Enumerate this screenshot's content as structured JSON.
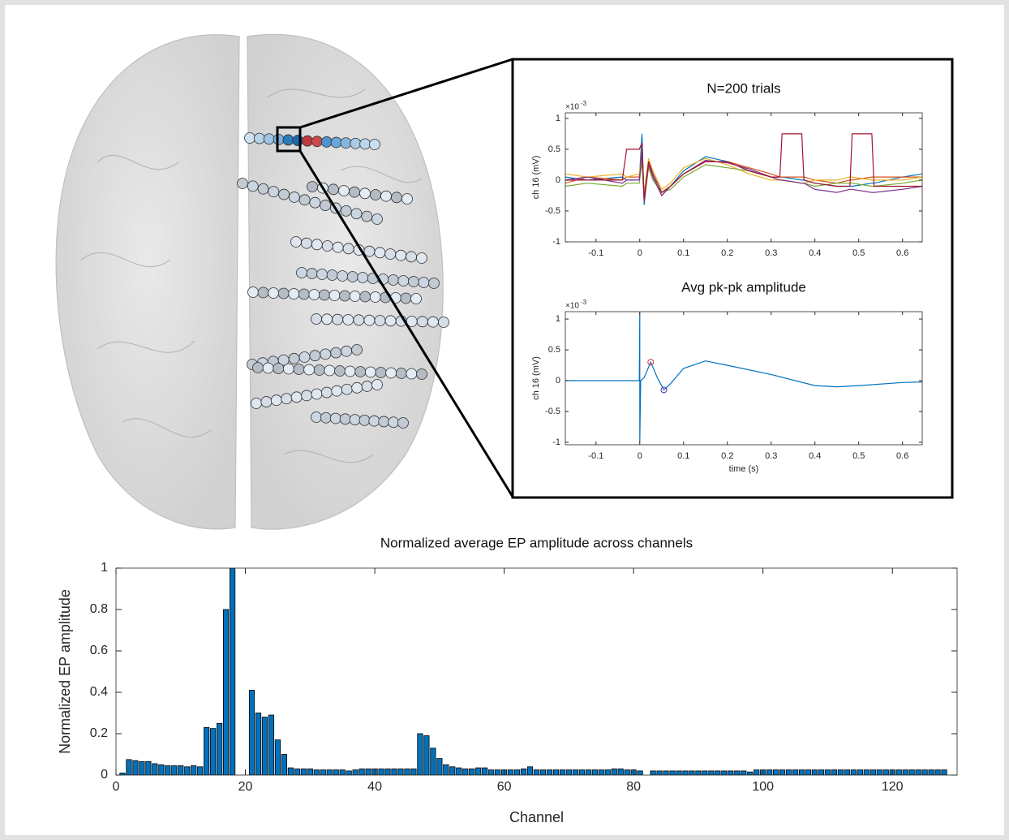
{
  "chart_data": [
    {
      "type": "line",
      "title": "N=200 trials",
      "ylabel": "ch 16 (mV)",
      "y_scale_base": "×10",
      "y_scale_power": "-3",
      "x": [
        -0.17,
        -0.12,
        -0.04,
        -0.03,
        -0.001,
        0.005,
        0.01,
        0.02,
        0.03,
        0.05,
        0.07,
        0.1,
        0.15,
        0.2,
        0.25,
        0.3,
        0.32,
        0.325,
        0.37,
        0.375,
        0.4,
        0.45,
        0.48,
        0.485,
        0.53,
        0.535,
        0.6,
        0.645
      ],
      "series": [
        {
          "color": "#0072bd",
          "values": [
            0.05,
            0,
            0.05,
            0,
            0,
            0.75,
            -0.4,
            0.3,
            0.1,
            -0.2,
            -0.1,
            0.15,
            0.38,
            0.3,
            0.15,
            0.05,
            0.05,
            0.05,
            0,
            0,
            -0.05,
            -0.1,
            -0.1,
            -0.1,
            -0.05,
            -0.05,
            0.05,
            0.1
          ]
        },
        {
          "color": "#d95319",
          "values": [
            -0.05,
            0.05,
            0,
            0.05,
            0.05,
            0.5,
            -0.3,
            0.25,
            0.05,
            -0.25,
            -0.1,
            0.1,
            0.3,
            0.3,
            0.2,
            0.1,
            0.05,
            0.05,
            0.05,
            0.05,
            0,
            -0.05,
            0,
            0,
            0.05,
            0.05,
            0.05,
            0.05
          ]
        },
        {
          "color": "#edb120",
          "values": [
            0.1,
            0.05,
            0.1,
            0.05,
            0.1,
            0.4,
            -0.2,
            0.35,
            0.15,
            -0.15,
            -0.05,
            0.2,
            0.35,
            0.25,
            0.1,
            0,
            0,
            0,
            -0.05,
            -0.05,
            0,
            0,
            0.05,
            0.05,
            0,
            0,
            0,
            0.05
          ]
        },
        {
          "color": "#77ac30",
          "values": [
            -0.1,
            -0.05,
            -0.1,
            -0.05,
            -0.05,
            0.3,
            -0.35,
            0.2,
            0,
            -0.2,
            -0.15,
            0.05,
            0.25,
            0.2,
            0.15,
            0.05,
            0,
            0,
            -0.05,
            -0.05,
            -0.1,
            -0.05,
            -0.05,
            -0.05,
            -0.1,
            -0.1,
            -0.05,
            0
          ]
        },
        {
          "color": "#7e2f8e",
          "values": [
            0,
            0.05,
            -0.05,
            0,
            0,
            0.45,
            -0.35,
            0.25,
            0.05,
            -0.25,
            -0.1,
            0.1,
            0.32,
            0.28,
            0.18,
            0.05,
            0,
            0,
            -0.05,
            -0.05,
            -0.15,
            -0.2,
            -0.15,
            -0.15,
            -0.2,
            -0.2,
            -0.15,
            -0.1
          ]
        },
        {
          "color": "#a2142f",
          "values": [
            0,
            0,
            0,
            0.5,
            0.5,
            0.6,
            -0.3,
            0.3,
            0.1,
            -0.2,
            -0.1,
            0.1,
            0.3,
            0.3,
            0.15,
            0.05,
            0.05,
            0.75,
            0.75,
            0,
            -0.05,
            -0.1,
            -0.1,
            0.75,
            0.75,
            -0.1,
            -0.1,
            -0.1
          ]
        }
      ],
      "xlim": [
        -0.17,
        0.645
      ],
      "xticks": [
        -0.1,
        0,
        0.1,
        0.2,
        0.3,
        0.4,
        0.5,
        0.6
      ],
      "ylim": [
        -1,
        1.09
      ],
      "yticks": [
        -1,
        -0.5,
        0,
        0.5,
        1
      ]
    },
    {
      "type": "line",
      "title": "Avg pk-pk amplitude",
      "ylabel": "ch 16 (mV)",
      "xlabel": "time (s)",
      "y_scale_base": "×10",
      "y_scale_power": "-3",
      "x": [
        -0.17,
        -0.05,
        -0.001,
        0,
        0,
        0.002,
        0.01,
        0.025,
        0.04,
        0.055,
        0.07,
        0.1,
        0.15,
        0.2,
        0.3,
        0.4,
        0.45,
        0.5,
        0.6,
        0.645
      ],
      "series": [
        {
          "color": "#0072bd",
          "values": [
            0,
            0,
            0,
            1.1,
            -1,
            0,
            0.05,
            0.3,
            0.05,
            -0.15,
            -0.05,
            0.2,
            0.32,
            0.25,
            0.1,
            -0.08,
            -0.1,
            -0.08,
            -0.03,
            -0.02
          ]
        }
      ],
      "markers": [
        {
          "x": 0.025,
          "y": 0.3,
          "color": "#e03030"
        },
        {
          "x": 0.055,
          "y": -0.15,
          "color": "#5a2ca0"
        }
      ],
      "xlim": [
        -0.17,
        0.645
      ],
      "xticks": [
        -0.1,
        0,
        0.1,
        0.2,
        0.3,
        0.4,
        0.5,
        0.6
      ],
      "ylim": [
        -1.04,
        1.12
      ],
      "yticks": [
        -1,
        -0.5,
        0,
        0.5,
        1
      ]
    },
    {
      "type": "bar",
      "title": "Normalized average EP amplitude across channels",
      "xlabel": "Channel",
      "ylabel": "Normalized EP amplitude",
      "color": "#0072bd",
      "x": [
        1,
        2,
        3,
        4,
        5,
        6,
        7,
        8,
        9,
        10,
        11,
        12,
        13,
        14,
        15,
        16,
        17,
        18,
        19,
        20,
        21,
        22,
        23,
        24,
        25,
        26,
        27,
        28,
        29,
        30,
        31,
        32,
        33,
        34,
        35,
        36,
        37,
        38,
        39,
        40,
        41,
        42,
        43,
        44,
        45,
        46,
        47,
        48,
        49,
        50,
        51,
        52,
        53,
        54,
        55,
        56,
        57,
        58,
        59,
        60,
        61,
        62,
        63,
        64,
        65,
        66,
        67,
        68,
        69,
        70,
        71,
        72,
        73,
        74,
        75,
        76,
        77,
        78,
        79,
        80,
        81,
        82,
        83,
        84,
        85,
        86,
        87,
        88,
        89,
        90,
        91,
        92,
        93,
        94,
        95,
        96,
        97,
        98,
        99,
        100,
        101,
        102,
        103,
        104,
        105,
        106,
        107,
        108,
        109,
        110,
        111,
        112,
        113,
        114,
        115,
        116,
        117,
        118,
        119,
        120,
        121,
        122,
        123,
        124,
        125,
        126,
        127,
        128
      ],
      "values": [
        0.01,
        0.075,
        0.07,
        0.065,
        0.065,
        0.055,
        0.05,
        0.045,
        0.045,
        0.045,
        0.04,
        0.045,
        0.04,
        0.23,
        0.225,
        0.25,
        0.8,
        1,
        0,
        0,
        0.41,
        0.3,
        0.28,
        0.29,
        0.17,
        0.1,
        0.035,
        0.03,
        0.03,
        0.03,
        0.025,
        0.025,
        0.025,
        0.025,
        0.025,
        0.02,
        0.025,
        0.03,
        0.03,
        0.03,
        0.03,
        0.03,
        0.03,
        0.03,
        0.03,
        0.03,
        0.2,
        0.19,
        0.13,
        0.08,
        0.05,
        0.04,
        0.035,
        0.03,
        0.03,
        0.035,
        0.035,
        0.025,
        0.025,
        0.025,
        0.025,
        0.025,
        0.03,
        0.04,
        0.025,
        0.025,
        0.025,
        0.025,
        0.025,
        0.025,
        0.025,
        0.025,
        0.025,
        0.025,
        0.025,
        0.025,
        0.03,
        0.03,
        0.025,
        0.025,
        0.02,
        0,
        0.02,
        0.02,
        0.02,
        0.02,
        0.02,
        0.02,
        0.02,
        0.02,
        0.02,
        0.02,
        0.02,
        0.02,
        0.02,
        0.02,
        0.02,
        0.015,
        0.025,
        0.025,
        0.025,
        0.025,
        0.025,
        0.025,
        0.025,
        0.025,
        0.025,
        0.025,
        0.025,
        0.025,
        0.025,
        0.025,
        0.025,
        0.025,
        0.025,
        0.025,
        0.025,
        0.025,
        0.025,
        0.025,
        0.025,
        0.025,
        0.025,
        0.025,
        0.025,
        0.025,
        0.025,
        0.025
      ],
      "xlim": [
        0,
        130
      ],
      "xticks": [
        0,
        20,
        40,
        60,
        80,
        100,
        120
      ],
      "ylim": [
        0,
        1
      ],
      "yticks": [
        0,
        0.2,
        0.4,
        0.6,
        0.8,
        1
      ]
    }
  ]
}
